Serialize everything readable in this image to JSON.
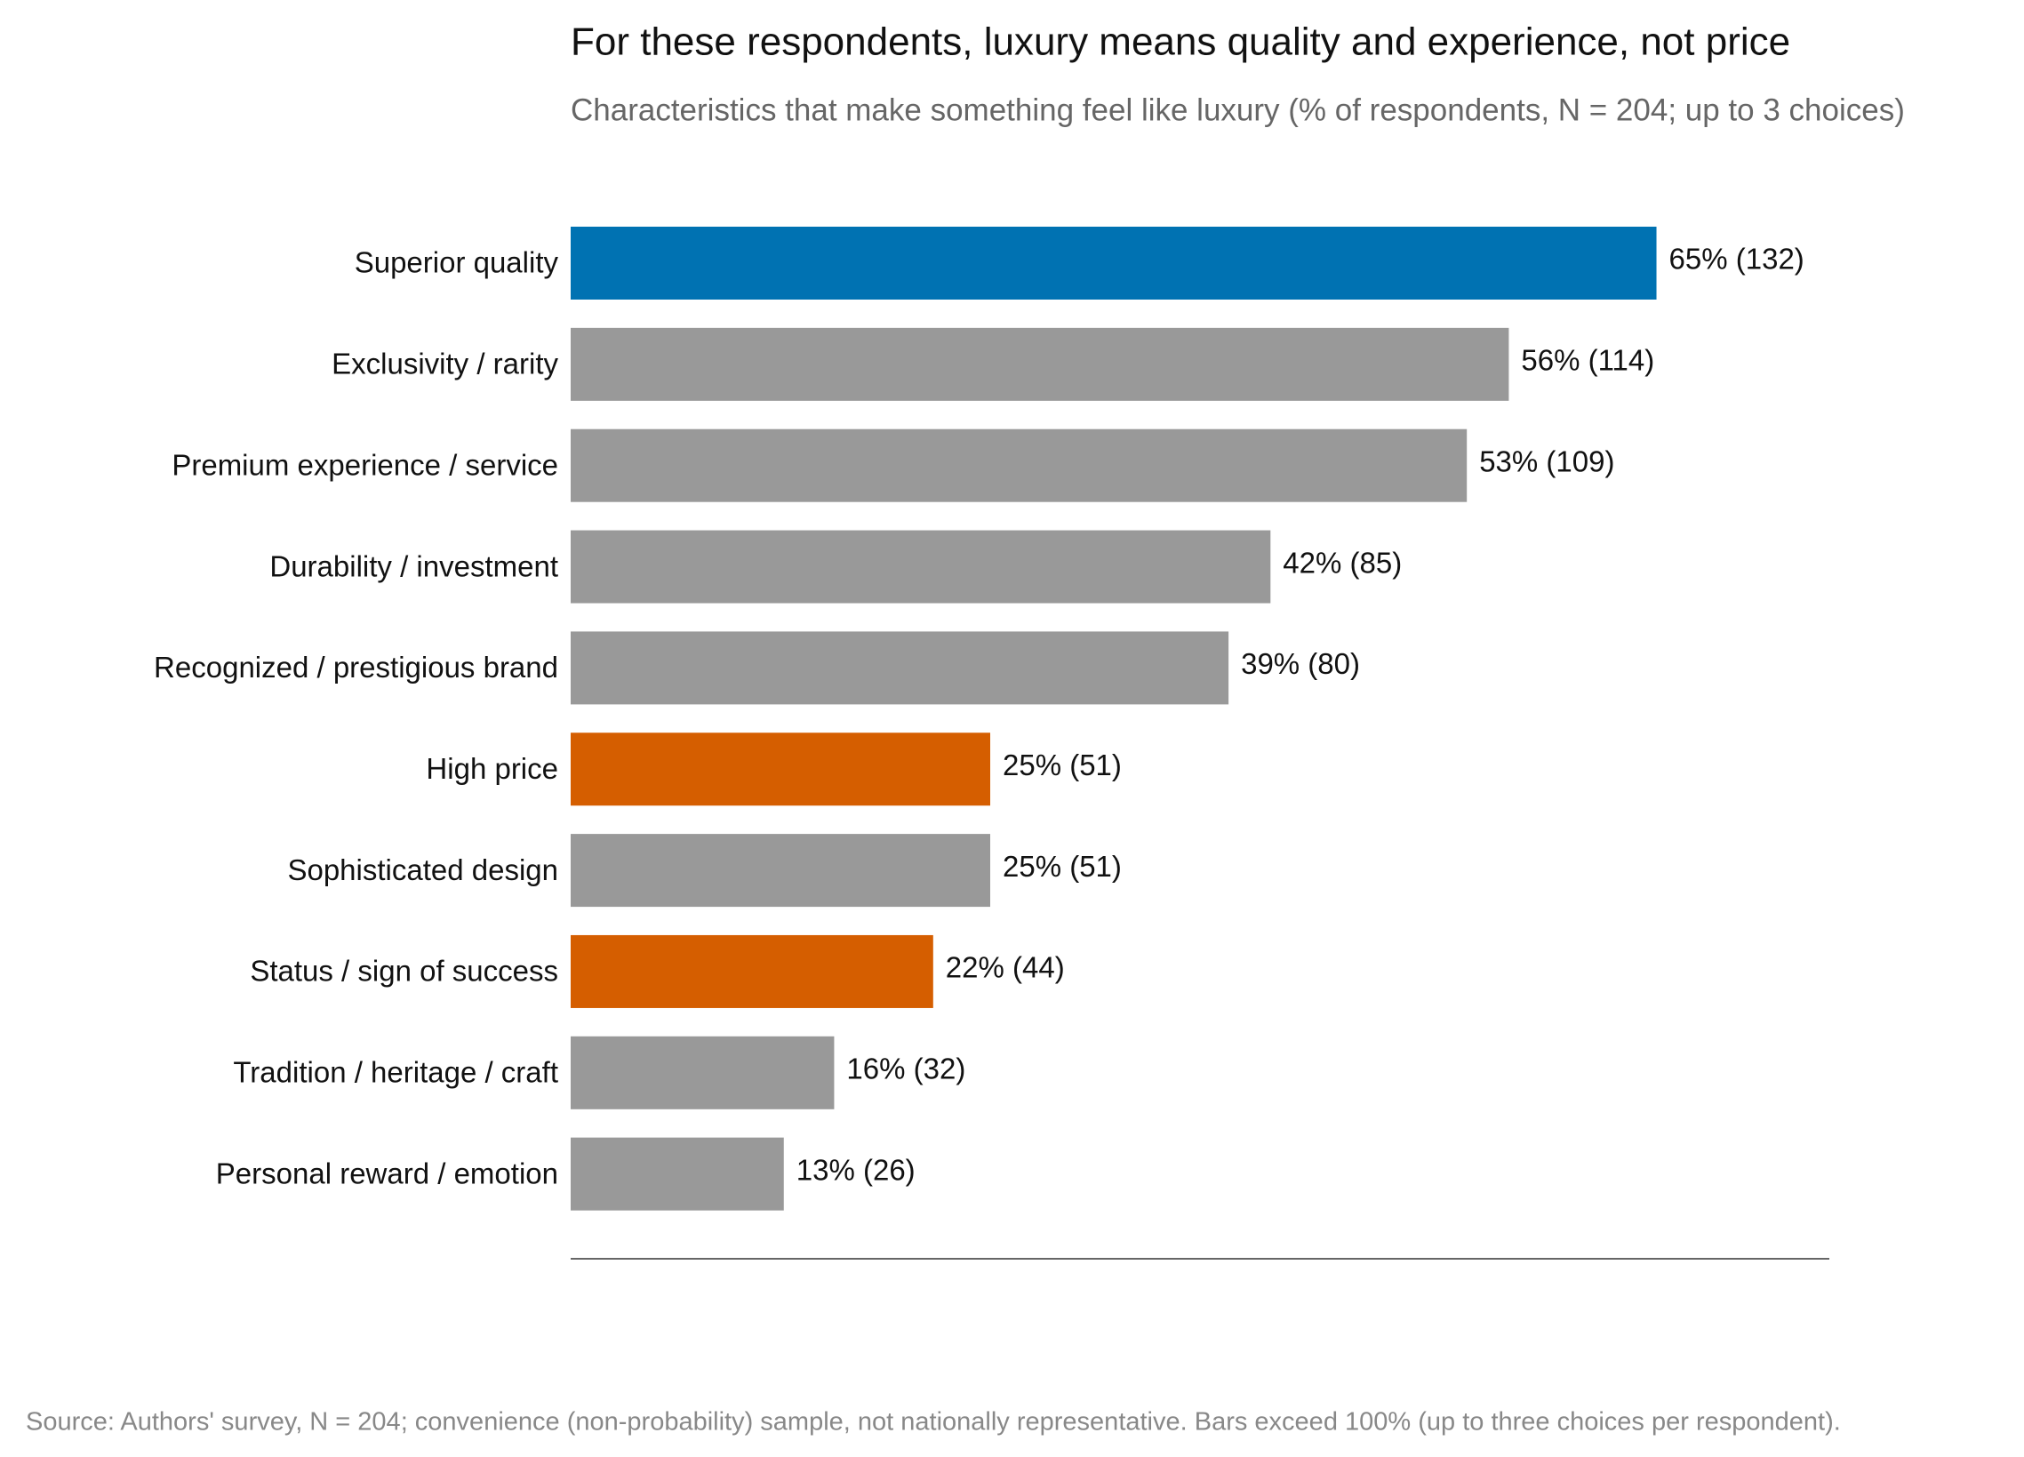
{
  "chart_data": {
    "type": "bar",
    "orientation": "horizontal",
    "title": "For these respondents, luxury means quality and experience, not price",
    "subtitle": "Characteristics that make something feel like luxury (% of respondents, N = 204; up to 3 choices)",
    "categories": [
      "Superior quality",
      "Exclusivity / rarity",
      "Premium experience / service",
      "Durability / investment",
      "Recognized / prestigious brand",
      "High price",
      "Sophisticated design",
      "Status / sign of success",
      "Tradition / heritage / craft",
      "Personal reward / emotion"
    ],
    "values": [
      64.7,
      55.9,
      53.4,
      41.7,
      39.2,
      25.0,
      25.0,
      21.6,
      15.7,
      12.7
    ],
    "value_labels": [
      "65%  (132)",
      "56%  (114)",
      "53%  (109)",
      "42%  (85)",
      "39%  (80)",
      "25%  (51)",
      "25%  (51)",
      "22%  (44)",
      "16%  (32)",
      "13%  (26)"
    ],
    "colors": [
      "#0072b2",
      "#999999",
      "#999999",
      "#999999",
      "#999999",
      "#d55e00",
      "#999999",
      "#d55e00",
      "#999999",
      "#999999"
    ],
    "xlim": [
      0,
      75
    ],
    "source": "Source: Authors' survey, N = 204; convenience (non-probability) sample, not nationally representative.  Bars exceed 100% (up to three choices per respondent)."
  }
}
